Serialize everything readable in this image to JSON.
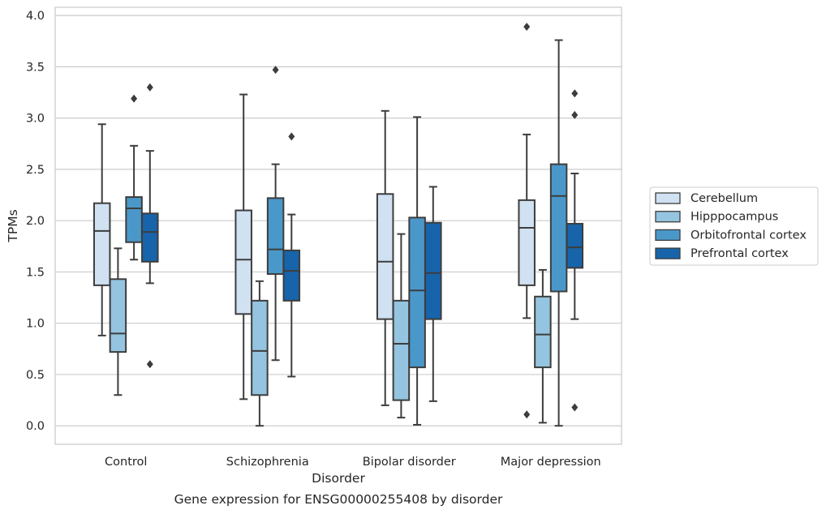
{
  "caption": "Gene expression for ENSG00000255408 by disorder",
  "chart_data": {
    "type": "box",
    "title": "",
    "xlabel": "Disorder",
    "ylabel": "TPMs",
    "ylim": [
      -0.18,
      4.08
    ],
    "yticks": [
      0.0,
      0.5,
      1.0,
      1.5,
      2.0,
      2.5,
      3.0,
      3.5,
      4.0
    ],
    "ytick_labels": [
      "0.0",
      "0.5",
      "1.0",
      "1.5",
      "2.0",
      "2.5",
      "3.0",
      "3.5",
      "4.0"
    ],
    "grid": "horizontal",
    "legend_position": "right",
    "categories": [
      "Control",
      "Schizophrenia",
      "Bipolar disorder",
      "Major depression"
    ],
    "series": [
      {
        "name": "Cerebellum",
        "color": "#d0e1f2",
        "boxes": [
          {
            "whisker_low": 0.88,
            "q1": 1.37,
            "median": 1.9,
            "q3": 2.17,
            "whisker_high": 2.94,
            "outliers": []
          },
          {
            "whisker_low": 0.26,
            "q1": 1.09,
            "median": 1.62,
            "q3": 2.1,
            "whisker_high": 3.23,
            "outliers": []
          },
          {
            "whisker_low": 0.2,
            "q1": 1.04,
            "median": 1.6,
            "q3": 2.26,
            "whisker_high": 3.07,
            "outliers": []
          },
          {
            "whisker_low": 1.05,
            "q1": 1.37,
            "median": 1.93,
            "q3": 2.2,
            "whisker_high": 2.84,
            "outliers": [
              3.89,
              0.11
            ]
          }
        ]
      },
      {
        "name": "Hipppocampus",
        "color": "#94c4df",
        "boxes": [
          {
            "whisker_low": 0.3,
            "q1": 0.72,
            "median": 0.9,
            "q3": 1.43,
            "whisker_high": 1.73,
            "outliers": []
          },
          {
            "whisker_low": 0.0,
            "q1": 0.3,
            "median": 0.73,
            "q3": 1.22,
            "whisker_high": 1.41,
            "outliers": []
          },
          {
            "whisker_low": 0.08,
            "q1": 0.25,
            "median": 0.8,
            "q3": 1.22,
            "whisker_high": 1.87,
            "outliers": []
          },
          {
            "whisker_low": 0.03,
            "q1": 0.57,
            "median": 0.89,
            "q3": 1.26,
            "whisker_high": 1.52,
            "outliers": []
          }
        ]
      },
      {
        "name": "Orbitofrontal cortex",
        "color": "#4a98c9",
        "boxes": [
          {
            "whisker_low": 1.62,
            "q1": 1.79,
            "median": 2.12,
            "q3": 2.23,
            "whisker_high": 2.73,
            "outliers": [
              3.19
            ]
          },
          {
            "whisker_low": 0.64,
            "q1": 1.48,
            "median": 1.72,
            "q3": 2.22,
            "whisker_high": 2.55,
            "outliers": [
              3.47
            ]
          },
          {
            "whisker_low": 0.01,
            "q1": 0.57,
            "median": 1.32,
            "q3": 2.03,
            "whisker_high": 3.01,
            "outliers": []
          },
          {
            "whisker_low": 0.0,
            "q1": 1.31,
            "median": 2.24,
            "q3": 2.55,
            "whisker_high": 3.76,
            "outliers": []
          }
        ]
      },
      {
        "name": "Prefrontal cortex",
        "color": "#1764ab",
        "boxes": [
          {
            "whisker_low": 1.39,
            "q1": 1.6,
            "median": 1.89,
            "q3": 2.07,
            "whisker_high": 2.68,
            "outliers": [
              3.3,
              0.6
            ]
          },
          {
            "whisker_low": 0.48,
            "q1": 1.22,
            "median": 1.51,
            "q3": 1.71,
            "whisker_high": 2.06,
            "outliers": [
              2.82
            ]
          },
          {
            "whisker_low": 0.24,
            "q1": 1.04,
            "median": 1.49,
            "q3": 1.98,
            "whisker_high": 2.33,
            "outliers": []
          },
          {
            "whisker_low": 1.04,
            "q1": 1.54,
            "median": 1.74,
            "q3": 1.97,
            "whisker_high": 2.46,
            "outliers": [
              3.24,
              3.03,
              0.18
            ]
          }
        ]
      }
    ]
  }
}
